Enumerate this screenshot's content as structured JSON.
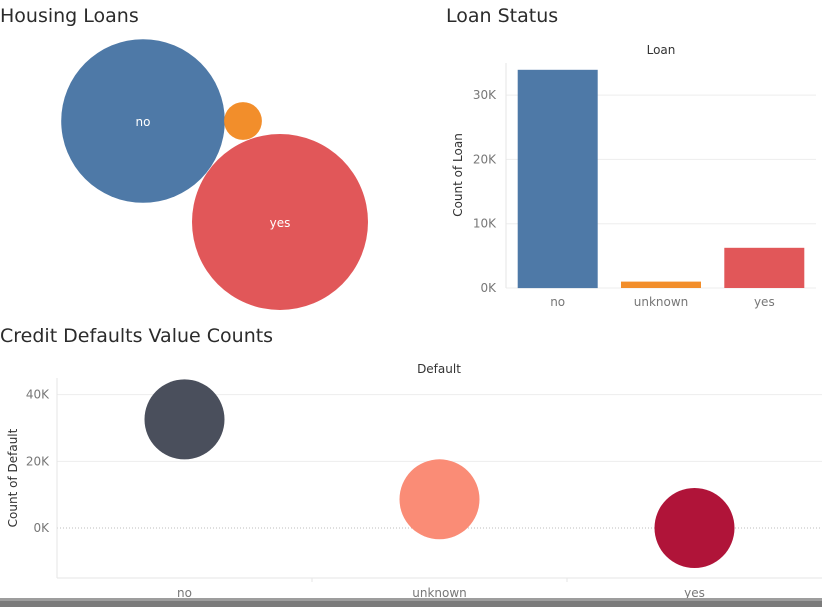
{
  "housing": {
    "title": "Housing Loans"
  },
  "loan": {
    "title": "Loan Status"
  },
  "default": {
    "title": "Credit Defaults Value Counts"
  },
  "chart_data": [
    {
      "type": "scatter",
      "id": "housing",
      "title": "Housing Loans",
      "encoding": "packed bubbles, size = count",
      "categories": [
        "no",
        "unknown",
        "yes"
      ],
      "values": [
        18622,
        990,
        21576
      ],
      "labels_shown": [
        "no",
        "",
        "yes"
      ],
      "colors": [
        "#4e79a7",
        "#f28e2b",
        "#e15759"
      ]
    },
    {
      "type": "bar",
      "id": "loan",
      "title": "Loan",
      "categories": [
        "no",
        "unknown",
        "yes"
      ],
      "values": [
        33950,
        990,
        6248
      ],
      "colors": [
        "#4e79a7",
        "#f28e2b",
        "#e15759"
      ],
      "xlabel": "",
      "ylabel": "Count of Loan",
      "ylim": [
        0,
        35000
      ],
      "yticks": [
        0,
        10000,
        20000,
        30000
      ],
      "ytick_labels": [
        "0K",
        "10K",
        "20K",
        "30K"
      ],
      "grid": true
    },
    {
      "type": "scatter",
      "id": "default",
      "title": "Default",
      "categories": [
        "no",
        "unknown",
        "yes"
      ],
      "values": [
        32588,
        8597,
        3
      ],
      "colors": [
        "#4a4f5c",
        "#fa8c76",
        "#b01439"
      ],
      "xlabel": "",
      "ylabel": "Count of Default",
      "ylim": [
        -15000,
        45000
      ],
      "yticks": [
        0,
        20000,
        40000
      ],
      "ytick_labels": [
        "0K",
        "20K",
        "40K"
      ],
      "grid": true
    }
  ]
}
